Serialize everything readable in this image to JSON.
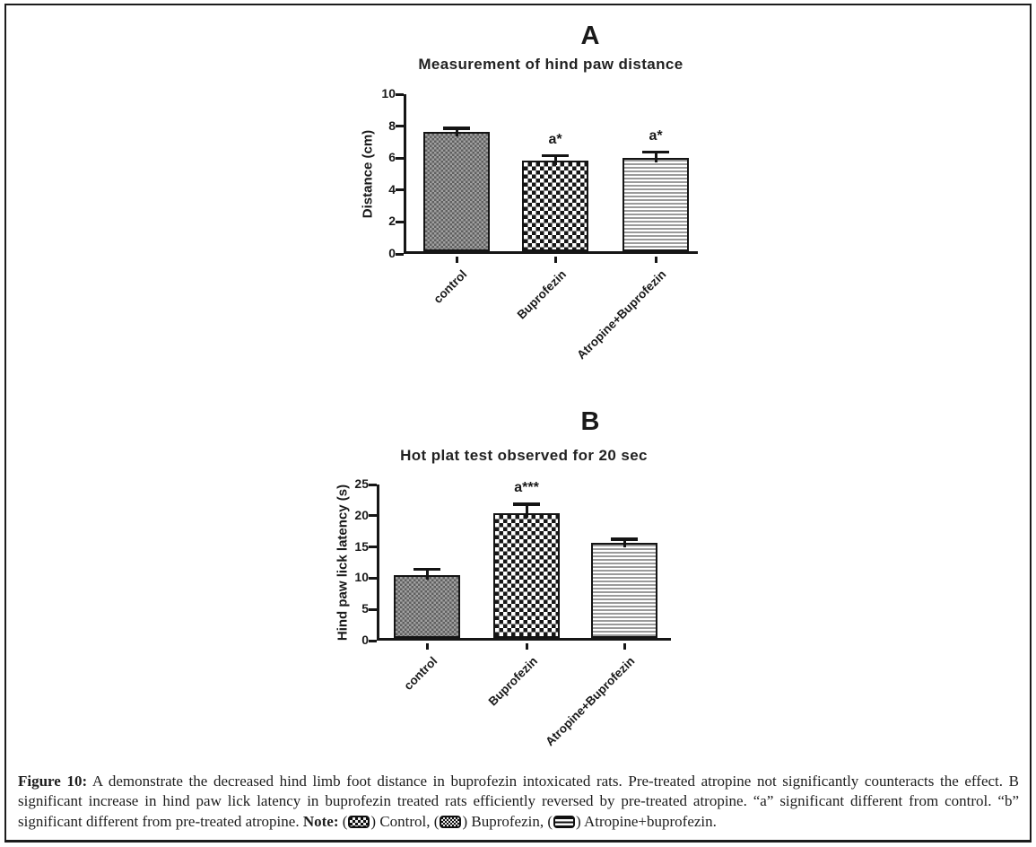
{
  "chart_data": [
    {
      "type": "bar",
      "panel": "A",
      "title": "Measurement of hind paw distance",
      "xlabel": "",
      "ylabel": "Distance (cm)",
      "categories": [
        "control",
        "Buprofezin",
        "Atropine+Buprofezin"
      ],
      "values": [
        7.45,
        5.7,
        5.85
      ],
      "errors": [
        0.4,
        0.45,
        0.5
      ],
      "annotations": [
        "",
        "a*",
        "a*"
      ],
      "ylim": [
        0,
        10
      ],
      "yticks": [
        0,
        2,
        4,
        6,
        8,
        10
      ],
      "patterns": [
        "fine-check",
        "checkerboard",
        "hlines"
      ],
      "grid": false,
      "legend_position": "none"
    },
    {
      "type": "bar",
      "panel": "B",
      "title": "Hot plat test observed for 20 sec",
      "xlabel": "",
      "ylabel": "Hind paw lick latency (s)",
      "categories": [
        "control",
        "Buprofezin",
        "Atropine+Buprofezin"
      ],
      "values": [
        10,
        20,
        15.2
      ],
      "errors": [
        1.4,
        1.8,
        1.0
      ],
      "annotations": [
        "",
        "a***",
        ""
      ],
      "ylim": [
        0,
        25
      ],
      "yticks": [
        0,
        5,
        10,
        15,
        20,
        25
      ],
      "patterns": [
        "fine-check",
        "checkerboard",
        "hlines"
      ],
      "grid": false,
      "legend_position": "none"
    }
  ],
  "caption": {
    "segments": [
      {
        "text": "Figure 10:",
        "bold": true
      },
      {
        "text": " A demonstrate the decreased hind limb foot distance in buprofezin intoxicated rats. Pre-treated atropine not significantly counteracts the effect. B significant increase in hind paw lick latency in buprofezin treated rats efficiently reversed by pre-treated atropine. “a” significant different from control. “b” significant different from pre-treated atropine. ",
        "bold": false
      },
      {
        "text": "Note:",
        "bold": true
      },
      {
        "text": " (",
        "bold": false
      },
      {
        "chip": "control"
      },
      {
        "text": ") Control, (",
        "bold": false
      },
      {
        "chip": "buprofezin"
      },
      {
        "text": ") Buprofezin, (",
        "bold": false
      },
      {
        "chip": "atropine-buprofezin"
      },
      {
        "text": ") Atropine+buprofezin.",
        "bold": false
      }
    ]
  }
}
